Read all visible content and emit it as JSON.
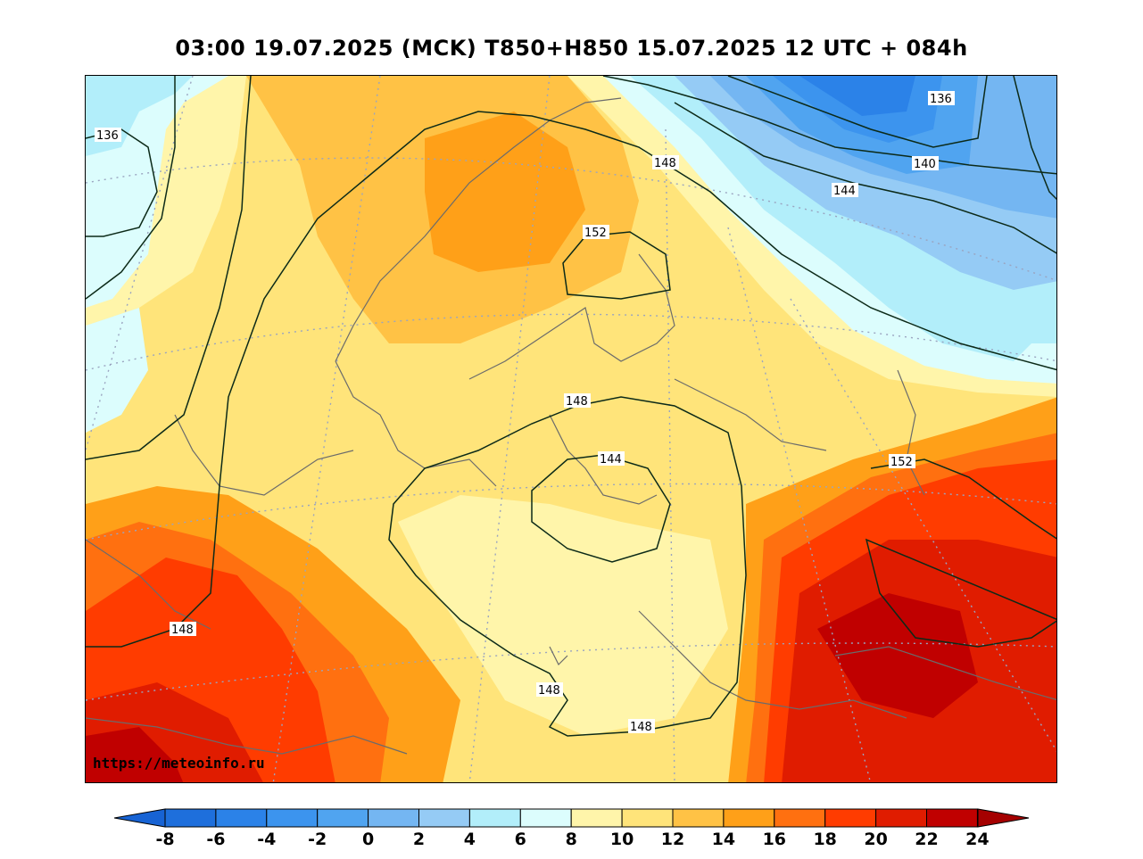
{
  "title": "03:00 19.07.2025 (MCK) T850+H850 15.07.2025 12 UTC + 084h",
  "source_label": "https://meteoinfo.ru",
  "colorbar": {
    "levels": [
      "-8",
      "-6",
      "-4",
      "-2",
      "0",
      "2",
      "4",
      "6",
      "8",
      "10",
      "12",
      "14",
      "16",
      "18",
      "20",
      "22",
      "24"
    ],
    "colors": [
      "#1e6fdc",
      "#2b82e8",
      "#3c94ee",
      "#50a4f0",
      "#74b6f2",
      "#95cbf5",
      "#b2eefa",
      "#dcfdfd",
      "#fff5aa",
      "#ffe47a",
      "#ffc245",
      "#ffa018",
      "#ff7010",
      "#ff3c00",
      "#e01c00",
      "#c00000"
    ],
    "under_color": "#1763d4",
    "over_color": "#a50000"
  },
  "contour_labels": [
    {
      "text": "136",
      "id": "nw"
    },
    {
      "text": "136",
      "id": "ne"
    },
    {
      "text": "140",
      "id": "ne"
    },
    {
      "text": "144",
      "id": "ne"
    },
    {
      "text": "148",
      "id": "n"
    },
    {
      "text": "152",
      "id": "finland"
    },
    {
      "text": "148",
      "id": "center-north"
    },
    {
      "text": "144",
      "id": "center"
    },
    {
      "text": "152",
      "id": "east"
    },
    {
      "text": "148",
      "id": "west"
    },
    {
      "text": "148",
      "id": "south-west"
    },
    {
      "text": "148",
      "id": "south"
    }
  ]
}
